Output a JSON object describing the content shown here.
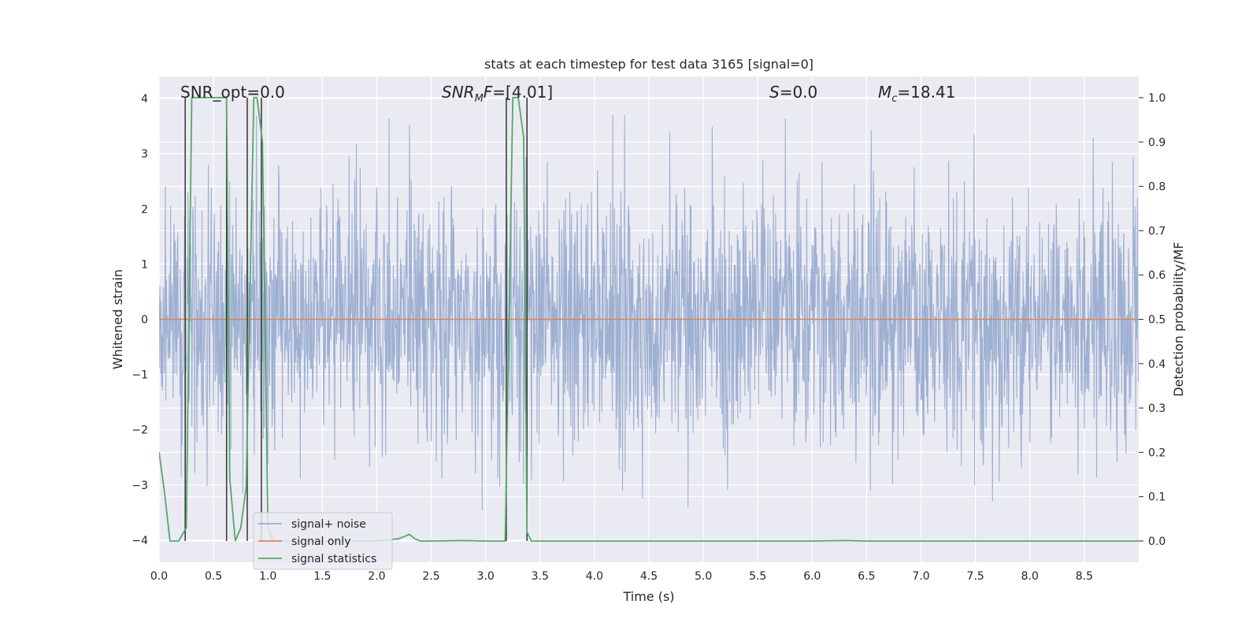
{
  "chart_data": {
    "type": "line",
    "title": "stats at each timestep for test data 3165 [signal=0]",
    "xlabel": "Time (s)",
    "ylabel": "Whitened strain",
    "y2label": "Detection probability/MF",
    "xlim": [
      0.0,
      9.0
    ],
    "ylim": [
      -4.4,
      4.4
    ],
    "y2lim": [
      -0.048,
      1.048
    ],
    "xticks": [
      0.0,
      0.5,
      1.0,
      1.5,
      2.0,
      2.5,
      3.0,
      3.5,
      4.0,
      4.5,
      5.0,
      5.5,
      6.0,
      6.5,
      7.0,
      7.5,
      8.0,
      8.5
    ],
    "xtick_labels": [
      "0.0",
      "0.5",
      "1.0",
      "1.5",
      "2.0",
      "2.5",
      "3.0",
      "3.5",
      "4.0",
      "4.5",
      "5.0",
      "5.5",
      "6.0",
      "6.5",
      "7.0",
      "7.5",
      "8.0",
      "8.5"
    ],
    "yticks": [
      -4,
      -3,
      -2,
      -1,
      0,
      1,
      2,
      3,
      4
    ],
    "ytick_labels": [
      "−4",
      "−3",
      "−2",
      "−1",
      "0",
      "1",
      "2",
      "3",
      "4"
    ],
    "y2ticks": [
      0.0,
      0.1,
      0.2,
      0.3,
      0.4,
      0.5,
      0.6,
      0.7,
      0.8,
      0.9,
      1.0
    ],
    "y2tick_labels": [
      "0.0",
      "0.1",
      "0.2",
      "0.3",
      "0.4",
      "0.5",
      "0.6",
      "0.7",
      "0.8",
      "0.9",
      "1.0"
    ],
    "grid": true,
    "legend_position": "lower-left",
    "annotations": {
      "snr_opt": "SNR_opt=0.0",
      "snr_mf_main": "SNR",
      "snr_mf_sub": "M",
      "snr_mf_rest": "F=[4.01]",
      "s_main": "S",
      "s_rest": "=0.0",
      "mc_main": "M",
      "mc_sub": "c",
      "mc_rest": "=18.41"
    },
    "series": [
      {
        "name": "signal+ noise",
        "color": "#9aadd0",
        "description_values": "whitened noise, approximately within [-3.7, 3.7]",
        "sample_rate": 256,
        "approx_range": [
          -3.7,
          3.7
        ]
      },
      {
        "name": "signal only",
        "color": "#dd8452",
        "x": [
          0.0,
          9.0
        ],
        "y": [
          0.0,
          0.0
        ]
      },
      {
        "name": "signal statistics",
        "color": "#55a868",
        "axis": "right",
        "x": [
          0.0,
          0.05,
          0.1,
          0.15,
          0.18,
          0.25,
          0.3,
          0.4,
          0.5,
          0.55,
          0.62,
          0.65,
          0.7,
          0.75,
          0.8,
          0.87,
          0.9,
          0.95,
          1.0,
          1.05,
          1.1,
          1.2,
          1.5,
          2.0,
          2.2,
          2.3,
          2.35,
          2.4,
          2.5,
          2.8,
          3.0,
          3.18,
          3.25,
          3.3,
          3.35,
          3.38,
          3.42,
          3.5,
          3.6,
          4.0,
          5.0,
          6.0,
          6.3,
          6.5,
          7.0,
          7.1,
          7.2,
          8.0,
          9.0
        ],
        "y": [
          0.2,
          0.11,
          0.0,
          0.0,
          0.0,
          0.03,
          1.0,
          1.0,
          1.0,
          1.0,
          1.0,
          0.14,
          0.0,
          0.03,
          0.12,
          1.0,
          1.0,
          0.9,
          0.03,
          0.0,
          0.0,
          0.0,
          0.0,
          0.0,
          0.005,
          0.015,
          0.005,
          0.0,
          0.0,
          0.001,
          0.0,
          0.0,
          1.0,
          1.0,
          0.91,
          0.02,
          0.0,
          0.0,
          0.0,
          0.0,
          0.0,
          0.0,
          0.001,
          0.0,
          0.0,
          0.0,
          0.0,
          0.0,
          0.0
        ]
      }
    ],
    "vertical_lines": {
      "color": "#333333",
      "x": [
        0.24,
        0.62,
        0.81,
        0.94,
        3.19,
        3.38
      ],
      "y2_range": [
        0.0,
        1.0
      ]
    }
  }
}
